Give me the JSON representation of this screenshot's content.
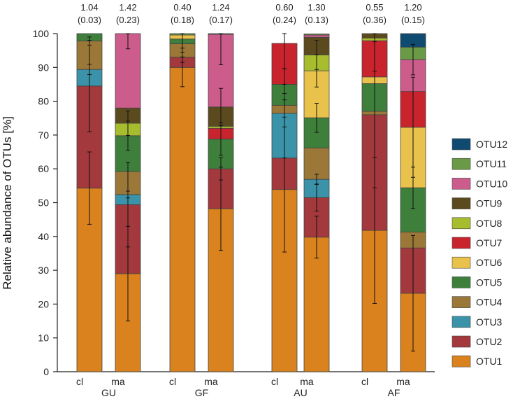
{
  "chart_data": {
    "type": "bar",
    "stacked": true,
    "ylabel": "Relative abundance of OTUs [%]",
    "ylim": [
      0,
      100
    ],
    "yticks": [
      0,
      10,
      20,
      30,
      40,
      50,
      60,
      70,
      80,
      90,
      100
    ],
    "groups": [
      {
        "name": "GU",
        "categories": [
          "cl",
          "ma"
        ]
      },
      {
        "name": "GF",
        "categories": [
          "cl",
          "ma"
        ]
      },
      {
        "name": "AU",
        "categories": [
          "cl",
          "ma"
        ]
      },
      {
        "name": "AF",
        "categories": [
          "cl",
          "ma"
        ]
      }
    ],
    "annotations": [
      {
        "value": "1.04",
        "sd": "(0.03)"
      },
      {
        "value": "1.42",
        "sd": "(0.23)"
      },
      {
        "value": "0.40",
        "sd": "(0.18)"
      },
      {
        "value": "1.24",
        "sd": "(0.17)"
      },
      {
        "value": "0.60",
        "sd": "(0.24)"
      },
      {
        "value": "1.30",
        "sd": "(0.13)"
      },
      {
        "value": "0.55",
        "sd": "(0.36)"
      },
      {
        "value": "1.20",
        "sd": "(0.15)"
      }
    ],
    "series": [
      {
        "name": "OTU1",
        "color": "#D9821E",
        "values": [
          54.3,
          29.0,
          90.0,
          48.2,
          53.9,
          39.8,
          41.8,
          23.2
        ],
        "err": [
          10.7,
          14.0,
          5.7,
          12.3,
          18.5,
          6.2,
          21.6,
          17.1
        ]
      },
      {
        "name": "OTU2",
        "color": "#A3383D",
        "values": [
          30.2,
          20.4,
          3.0,
          11.8,
          9.3,
          11.7,
          34.2,
          13.4
        ],
        "err": [
          13.5,
          12.5,
          1.5,
          3.3,
          0.0,
          4.0,
          21.6,
          0.0
        ]
      },
      {
        "name": "OTU3",
        "color": "#3A93A8",
        "values": [
          4.9,
          3.0,
          0.0,
          0.0,
          13.2,
          5.4,
          0.0,
          0.0
        ],
        "err": [
          1.5,
          1.0,
          0.0,
          0.0,
          13.2,
          1.5,
          0.0,
          0.0
        ]
      },
      {
        "name": "OTU4",
        "color": "#9C7838",
        "values": [
          8.4,
          6.8,
          4.0,
          0.0,
          2.4,
          9.3,
          1.0,
          4.7
        ],
        "err": [
          1.2,
          0.0,
          3.9,
          0.0,
          3.5,
          0.0,
          0.0,
          0.0
        ]
      },
      {
        "name": "OTU5",
        "color": "#3E7F3C",
        "values": [
          2.2,
          10.6,
          1.4,
          8.8,
          6.2,
          8.9,
          8.2,
          13.1
        ],
        "err": [
          0.0,
          4.3,
          0.0,
          4.8,
          4.6,
          4.3,
          0.0,
          6.1
        ]
      },
      {
        "name": "OTU6",
        "color": "#E8C24A",
        "values": [
          0.0,
          0.0,
          1.2,
          0.0,
          0.0,
          13.9,
          2.0,
          17.9
        ],
        "err": [
          0.0,
          0.0,
          0.0,
          0.0,
          0.0,
          4.8,
          0.0,
          14.8
        ]
      },
      {
        "name": "OTU7",
        "color": "#C9232E",
        "values": [
          0.0,
          0.0,
          0.0,
          3.2,
          12.1,
          0.0,
          10.7,
          10.6
        ],
        "err": [
          0.0,
          0.0,
          0.0,
          0.0,
          12.1,
          0.0,
          9.0,
          0.0
        ]
      },
      {
        "name": "OTU8",
        "color": "#A8BD2E",
        "values": [
          0.0,
          3.7,
          0.0,
          0.6,
          0.0,
          4.7,
          0.8,
          0.0
        ],
        "err": [
          0.0,
          3.6,
          0.0,
          0.0,
          0.0,
          4.3,
          0.0,
          0.0
        ]
      },
      {
        "name": "OTU9",
        "color": "#5B4A1E",
        "values": [
          0.0,
          4.5,
          0.0,
          5.7,
          0.0,
          5.2,
          1.3,
          0.0
        ],
        "err": [
          0.0,
          0.0,
          0.0,
          5.5,
          0.0,
          0.0,
          0.0,
          0.0
        ]
      },
      {
        "name": "OTU10",
        "color": "#CB5C8C",
        "values": [
          0.0,
          22.0,
          0.0,
          21.5,
          0.0,
          0.7,
          0.0,
          9.4
        ],
        "err": [
          0.0,
          4.5,
          0.0,
          9.0,
          0.0,
          0.0,
          0.0,
          4.5
        ]
      },
      {
        "name": "OTU11",
        "color": "#6A9A45",
        "values": [
          0.0,
          0.0,
          0.4,
          0.2,
          0.0,
          0.3,
          0.0,
          3.7
        ],
        "err": [
          0.0,
          0.0,
          0.0,
          0.0,
          0.0,
          0.0,
          0.0,
          0.0
        ]
      },
      {
        "name": "OTU12",
        "color": "#0F4A70",
        "values": [
          0.0,
          0.0,
          0.0,
          0.0,
          0.0,
          0.0,
          0.0,
          4.0
        ],
        "err": [
          0.0,
          0.0,
          0.0,
          0.0,
          0.0,
          0.0,
          0.0,
          0.0
        ]
      }
    ]
  }
}
